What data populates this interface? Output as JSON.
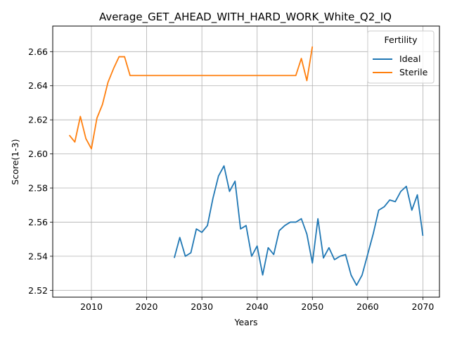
{
  "chart_data": {
    "type": "line",
    "title": "Average_GET_AHEAD_WITH_HARD_WORK_White_Q2_IQ",
    "xlabel": "Years",
    "ylabel": "Score(1-3)",
    "xlim": [
      2003,
      2073
    ],
    "ylim": [
      2.516,
      2.675
    ],
    "xticks": [
      2010,
      2020,
      2030,
      2040,
      2050,
      2060,
      2070
    ],
    "yticks": [
      2.52,
      2.54,
      2.56,
      2.58,
      2.6,
      2.62,
      2.64,
      2.66
    ],
    "xtick_labels": [
      "2010",
      "2020",
      "2030",
      "2040",
      "2050",
      "2060",
      "2070"
    ],
    "ytick_labels": [
      "2.52",
      "2.54",
      "2.56",
      "2.58",
      "2.60",
      "2.62",
      "2.64",
      "2.66"
    ],
    "grid": true,
    "legend": {
      "title": "Fertility",
      "position": "top-right"
    },
    "series": [
      {
        "name": "Ideal",
        "color": "#1f77b4",
        "x": [
          2025,
          2026,
          2027,
          2028,
          2029,
          2030,
          2031,
          2032,
          2033,
          2034,
          2035,
          2036,
          2037,
          2038,
          2039,
          2040,
          2041,
          2042,
          2043,
          2044,
          2045,
          2046,
          2047,
          2048,
          2049,
          2050,
          2051,
          2052,
          2053,
          2054,
          2055,
          2056,
          2057,
          2058,
          2059,
          2060,
          2061,
          2062,
          2063,
          2064,
          2065,
          2066,
          2067,
          2068,
          2069,
          2070
        ],
        "y": [
          2.539,
          2.551,
          2.54,
          2.542,
          2.556,
          2.554,
          2.558,
          2.574,
          2.587,
          2.593,
          2.578,
          2.584,
          2.556,
          2.558,
          2.54,
          2.546,
          2.529,
          2.545,
          2.541,
          2.555,
          2.558,
          2.56,
          2.56,
          2.562,
          2.553,
          2.536,
          2.562,
          2.539,
          2.545,
          2.538,
          2.54,
          2.541,
          2.529,
          2.523,
          2.529,
          2.541,
          2.553,
          2.567,
          2.569,
          2.573,
          2.572,
          2.578,
          2.581,
          2.567,
          2.576,
          2.552
        ]
      },
      {
        "name": "Sterile",
        "color": "#ff7f0e",
        "x": [
          2006,
          2007,
          2008,
          2009,
          2010,
          2011,
          2012,
          2013,
          2014,
          2015,
          2016,
          2017,
          2018,
          2019,
          2020,
          2021,
          2022,
          2023,
          2024,
          2025,
          2026,
          2027,
          2028,
          2029,
          2030,
          2031,
          2032,
          2033,
          2034,
          2035,
          2036,
          2037,
          2038,
          2039,
          2040,
          2041,
          2042,
          2043,
          2044,
          2045,
          2046,
          2047,
          2048,
          2049,
          2050
        ],
        "y": [
          2.611,
          2.607,
          2.622,
          2.609,
          2.603,
          2.621,
          2.629,
          2.642,
          2.65,
          2.657,
          2.657,
          2.646,
          2.646,
          2.646,
          2.646,
          2.646,
          2.646,
          2.646,
          2.646,
          2.646,
          2.646,
          2.646,
          2.646,
          2.646,
          2.646,
          2.646,
          2.646,
          2.646,
          2.646,
          2.646,
          2.646,
          2.646,
          2.646,
          2.646,
          2.646,
          2.646,
          2.646,
          2.646,
          2.646,
          2.646,
          2.646,
          2.646,
          2.656,
          2.643,
          2.663
        ]
      }
    ]
  }
}
